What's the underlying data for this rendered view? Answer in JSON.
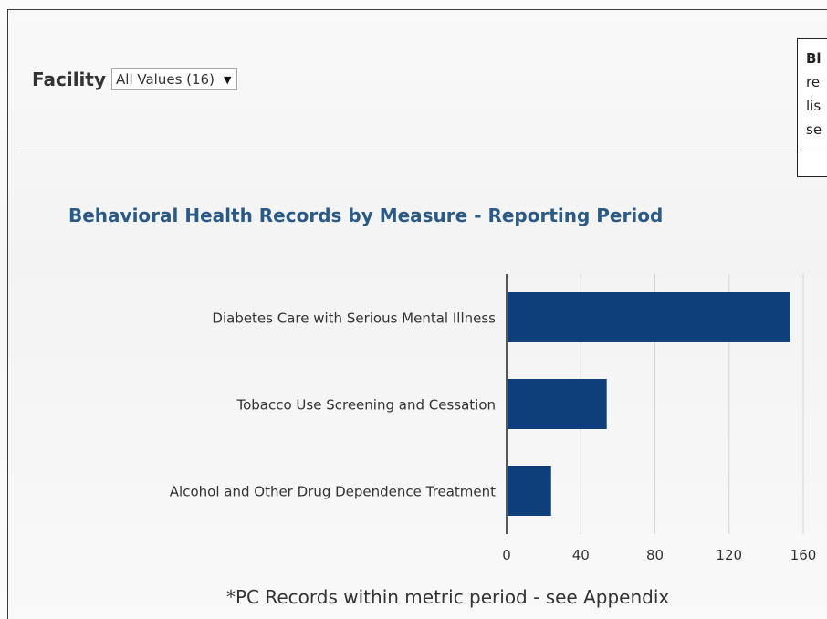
{
  "filter": {
    "label": "Facility",
    "selected_value": "All Values (16)"
  },
  "info_box": {
    "lines": [
      "Bl",
      "re",
      "lis",
      "se"
    ]
  },
  "chart_data": {
    "type": "bar",
    "orientation": "horizontal",
    "title": "Behavioral Health Records by Measure - Reporting Period",
    "categories": [
      "Diabetes Care with Serious Mental Illness",
      "Tobacco Use Screening and Cessation",
      "Alcohol and Other Drug Dependence Treatment"
    ],
    "values": [
      153,
      54,
      24
    ],
    "xlim": [
      0,
      160
    ],
    "xticks": [
      "0",
      "40",
      "80",
      "120",
      "160"
    ],
    "grid": true,
    "bar_color": "#0f3f7a"
  },
  "footnote": "*PC Records within metric period - see Appendix"
}
